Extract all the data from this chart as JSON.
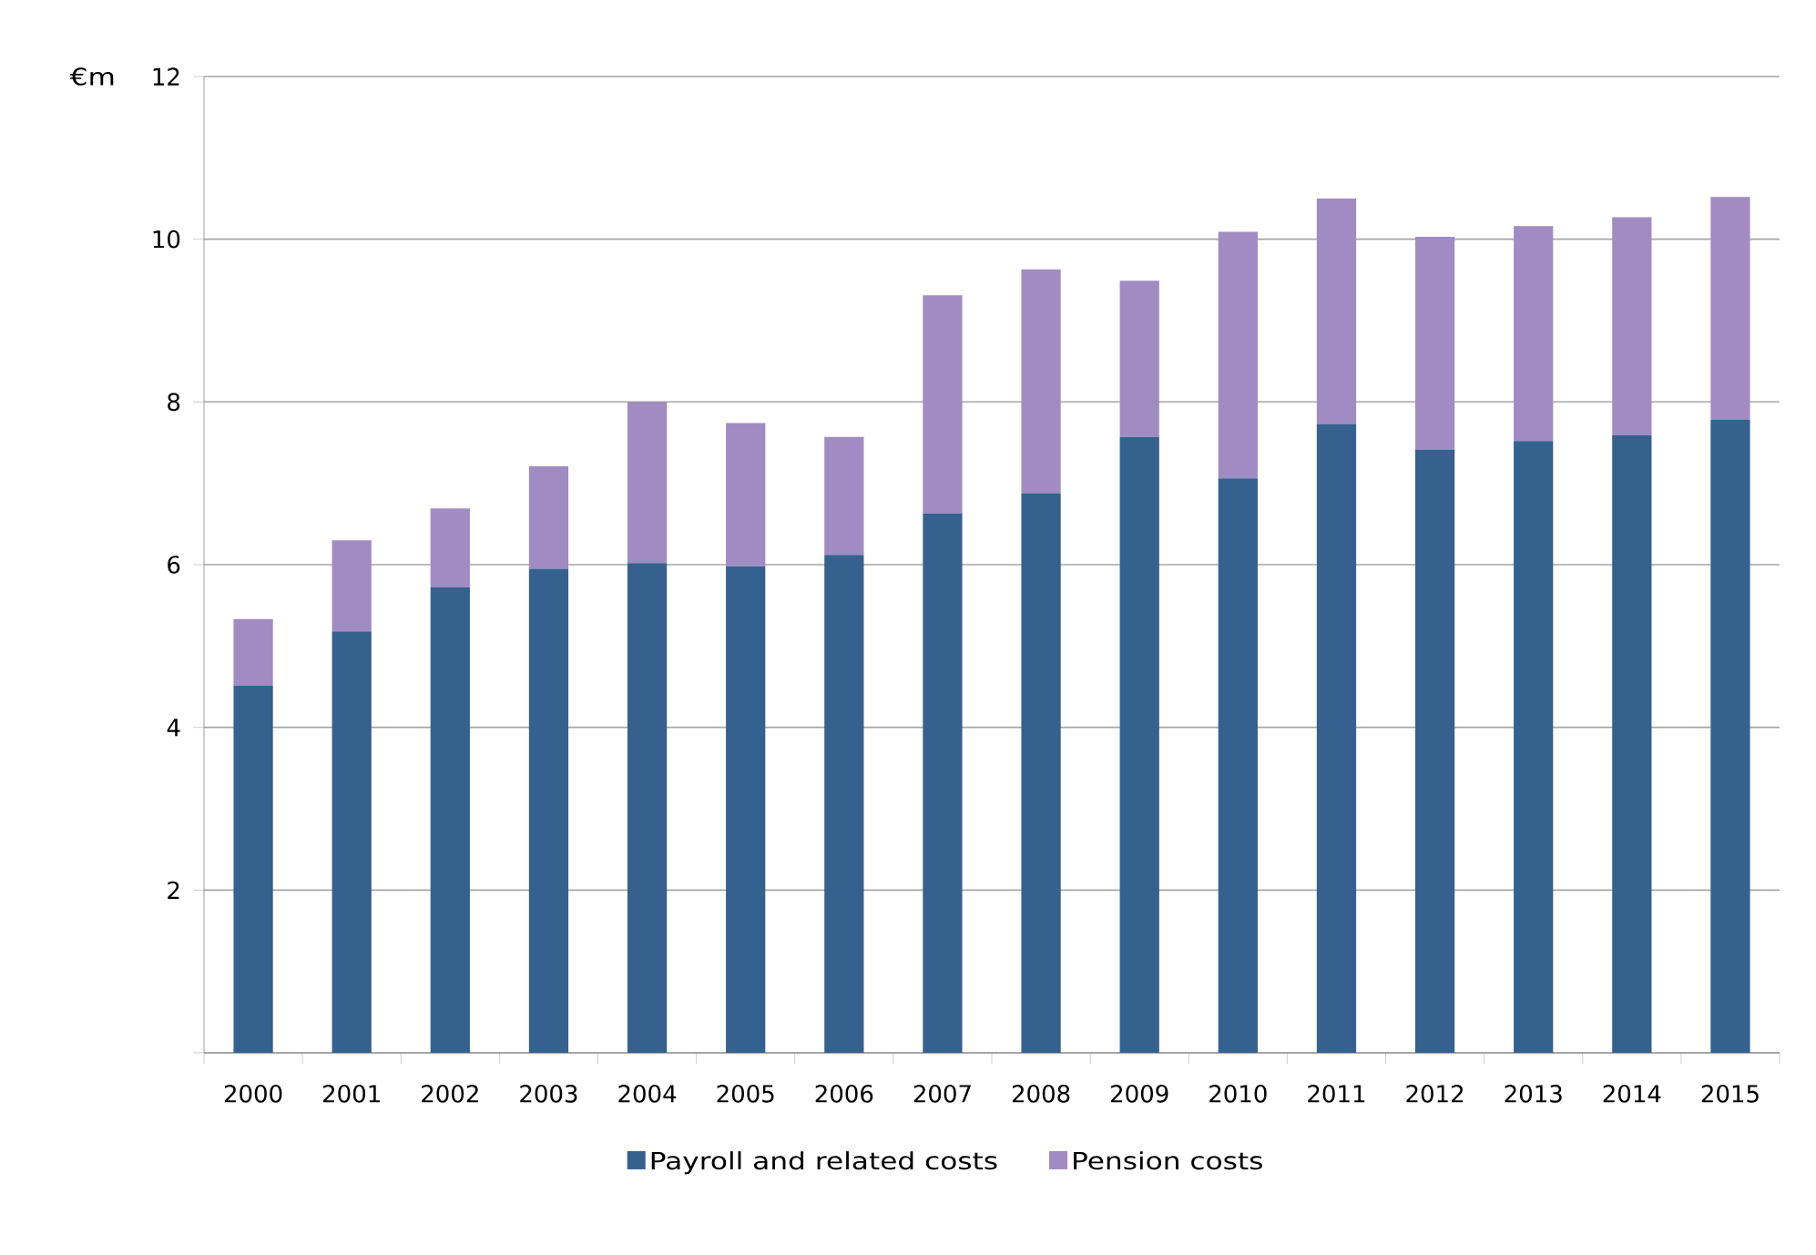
{
  "chart_data": {
    "type": "bar",
    "stacked": true,
    "ylabel": "€m",
    "categories": [
      "2000",
      "2001",
      "2002",
      "2003",
      "2004",
      "2005",
      "2006",
      "2007",
      "2008",
      "2009",
      "2010",
      "2011",
      "2012",
      "2013",
      "2014",
      "2015"
    ],
    "series": [
      {
        "name": "Payroll and related costs",
        "color": "#35618f",
        "values": [
          4.51,
          5.18,
          5.72,
          5.95,
          6.02,
          5.98,
          6.12,
          6.63,
          6.88,
          7.57,
          7.06,
          7.73,
          7.41,
          7.52,
          7.59,
          7.78
        ]
      },
      {
        "name": "Pension costs",
        "color": "#a08cc2",
        "values": [
          0.82,
          1.12,
          0.97,
          1.26,
          1.98,
          1.76,
          1.45,
          2.68,
          2.75,
          1.92,
          3.03,
          2.77,
          2.62,
          2.64,
          2.68,
          2.74
        ]
      }
    ],
    "ylim": [
      0,
      12
    ],
    "yticks": [
      {
        "value": 0,
        "label": null
      },
      2,
      4,
      6,
      8,
      10,
      12
    ],
    "grid": "y",
    "legend": "bottom"
  }
}
